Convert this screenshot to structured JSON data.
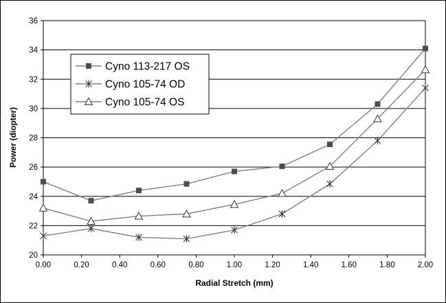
{
  "chart_data": {
    "type": "line",
    "xlabel": "Radial Stretch (mm)",
    "ylabel": "Power (diopter)",
    "x": [
      0.0,
      0.25,
      0.5,
      0.75,
      1.0,
      1.25,
      1.5,
      1.75,
      2.0
    ],
    "xlim": [
      0.0,
      2.0
    ],
    "ylim": [
      20,
      36
    ],
    "xticks": [
      "0.00",
      "0.20",
      "0.40",
      "0.60",
      "0.80",
      "1.00",
      "1.20",
      "1.40",
      "1.60",
      "1.80",
      "2.00"
    ],
    "yticks": [
      "20",
      "22",
      "24",
      "26",
      "28",
      "30",
      "32",
      "34",
      "36"
    ],
    "grid": "horizontal",
    "legend_position": "upper-left",
    "series": [
      {
        "name": "Cyno 113-217 OS",
        "marker": "square",
        "color": "#7f7f7f",
        "values": [
          25.0,
          23.7,
          24.4,
          24.85,
          25.7,
          26.05,
          27.55,
          30.3,
          34.1
        ]
      },
      {
        "name": "Cyno 105-74 OD",
        "marker": "asterisk",
        "color": "#7f7f7f",
        "values": [
          21.3,
          21.8,
          21.2,
          21.1,
          21.7,
          22.8,
          24.85,
          27.8,
          31.4
        ]
      },
      {
        "name": "Cyno 105-74 OS",
        "marker": "triangle",
        "color": "#7f7f7f",
        "values": [
          23.2,
          22.3,
          22.65,
          22.8,
          23.45,
          24.2,
          26.05,
          29.3,
          32.65
        ]
      }
    ]
  }
}
